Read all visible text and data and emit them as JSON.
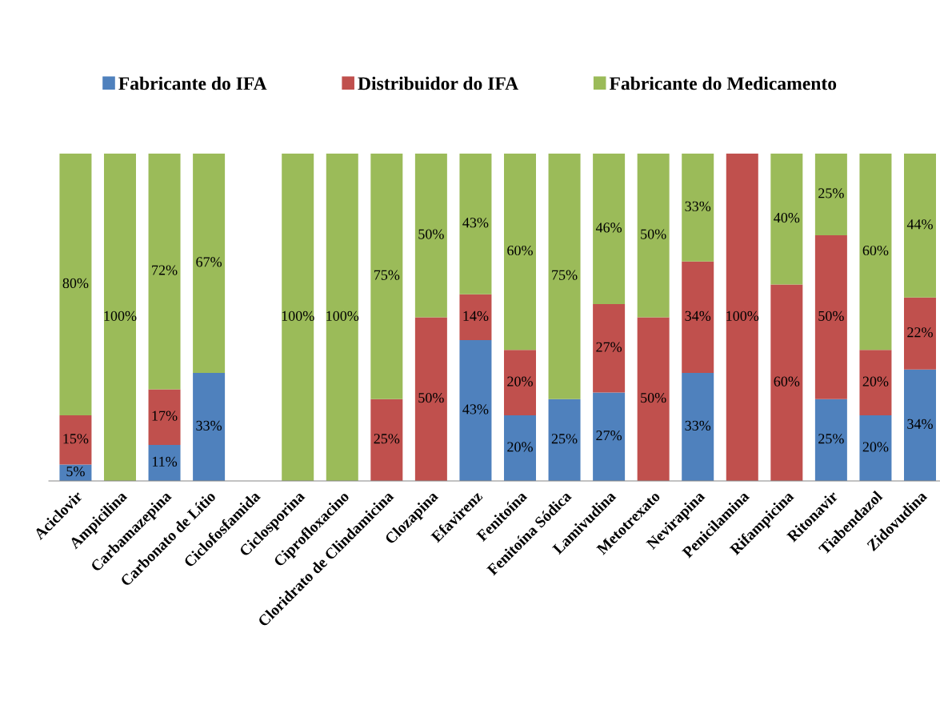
{
  "chart_data": {
    "type": "bar",
    "stacked": true,
    "legend": "top",
    "categories": [
      "Aciclovir",
      "Ampicilina",
      "Carbamazepina",
      "Carbonato de Lítio",
      "Ciclofosfamida",
      "Ciclosporina",
      "Ciprofloxacino",
      "Cloridrato de Clindamicina",
      "Clozapina",
      "Efavirenz",
      "Fenitoína",
      "Fenitoína Sódica",
      "Lamivudina",
      "Metotrexato",
      "Nevirapina",
      "Penicilamina",
      "Rifampicina",
      "Ritonavir",
      "Tiabendazol",
      "Zidovudina"
    ],
    "series": [
      {
        "name": "Fabricante do IFA",
        "color": "#4f81bd",
        "values": [
          5,
          null,
          11,
          33,
          null,
          null,
          null,
          null,
          null,
          43,
          20,
          25,
          27,
          null,
          33,
          null,
          null,
          25,
          20,
          34
        ],
        "value_labels": [
          "5%",
          null,
          "11%",
          "33%",
          null,
          null,
          null,
          null,
          null,
          "43%",
          "20%",
          "25%",
          "27%",
          null,
          "33%",
          null,
          null,
          "25%",
          "20%",
          "34%"
        ]
      },
      {
        "name": "Distribuidor do IFA",
        "color": "#c0504d",
        "values": [
          15,
          null,
          17,
          null,
          null,
          null,
          null,
          25,
          50,
          14,
          20,
          null,
          27,
          50,
          34,
          100,
          60,
          50,
          20,
          22
        ],
        "value_labels": [
          "15%",
          null,
          "17%",
          null,
          null,
          null,
          null,
          "25%",
          "50%",
          "14%",
          "20%",
          null,
          "27%",
          "50%",
          "34%",
          "100%",
          "60%",
          "50%",
          "20%",
          "22%"
        ]
      },
      {
        "name": "Fabricante do Medicamento",
        "color": "#9bbb59",
        "values": [
          80,
          100,
          72,
          67,
          null,
          100,
          100,
          75,
          50,
          43,
          60,
          75,
          46,
          50,
          33,
          null,
          40,
          25,
          60,
          44
        ],
        "value_labels": [
          "80%",
          "100%",
          "72%",
          "67%",
          null,
          "100%",
          "100%",
          "75%",
          "50%",
          "43%",
          "60%",
          "75%",
          "46%",
          "50%",
          "33%",
          null,
          "40%",
          "25%",
          "60%",
          "44%"
        ]
      }
    ]
  }
}
